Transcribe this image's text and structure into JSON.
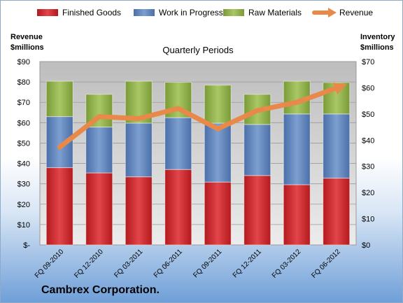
{
  "chart_data": {
    "type": "bar",
    "stacked": true,
    "title": "Quarterly Periods",
    "categories": [
      "FQ 09-2010",
      "FQ 12-2010",
      "FQ 03-2011",
      "FQ 06-2011",
      "FQ 09-2011",
      "FQ 12-2011",
      "FQ 03-2012",
      "FQ 06-2012"
    ],
    "series": [
      {
        "name": "Finished Goods",
        "axis": "right",
        "color": "#c0282b",
        "values": [
          29.5,
          27.5,
          26,
          28.8,
          24,
          26.5,
          23,
          25.5
        ]
      },
      {
        "name": "Work in Progress",
        "axis": "right",
        "color": "#5b80b8",
        "values": [
          19.5,
          17.5,
          20.5,
          19.8,
          22.5,
          19.5,
          27,
          24.5
        ]
      },
      {
        "name": "Raw Materials",
        "axis": "right",
        "color": "#8fb04a",
        "values": [
          13.5,
          12.5,
          16,
          13.5,
          14.5,
          11.5,
          12.5,
          12
        ]
      }
    ],
    "line_series": {
      "name": "Revenue",
      "axis": "left",
      "color": "#e8894a",
      "values": [
        48,
        63,
        62,
        67,
        57,
        66,
        70,
        77
      ]
    },
    "left_axis": {
      "label_line1": "Revenue",
      "label_line2": "$millions",
      "ticks": [
        "$-",
        "$10",
        "$20",
        "$30",
        "$40",
        "$50",
        "$60",
        "$70",
        "$80",
        "$90"
      ],
      "min": 0,
      "max": 90
    },
    "right_axis": {
      "label_line1": "Inventory",
      "label_line2": "$millions",
      "ticks": [
        "$0",
        "$10",
        "$20",
        "$30",
        "$40",
        "$50",
        "$60",
        "$70"
      ],
      "min": 0,
      "max": 70
    },
    "legend_placement": "top"
  },
  "company": "Cambrex Corporation."
}
